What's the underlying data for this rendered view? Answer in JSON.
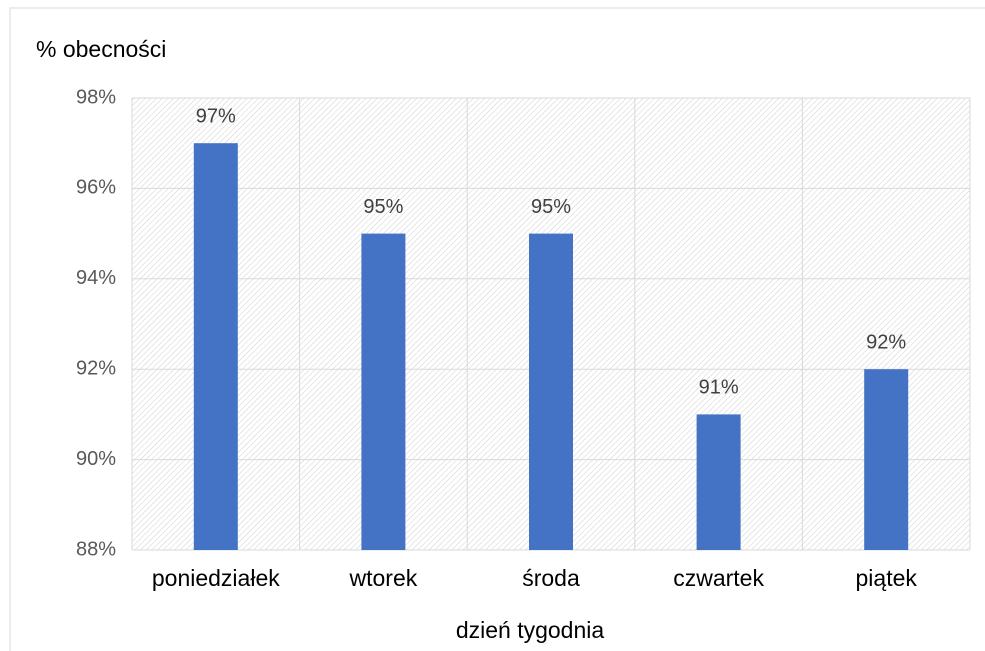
{
  "chart_data": {
    "type": "bar",
    "y_label": "% obecności",
    "x_label": "dzień tygodnia",
    "categories": [
      "poniedziałek",
      "wtorek",
      "środa",
      "czwartek",
      "piątek"
    ],
    "values": [
      97,
      95,
      95,
      91,
      92
    ],
    "value_labels": [
      "97%",
      "95%",
      "95%",
      "91%",
      "92%"
    ],
    "color": "#4472c4",
    "ylim": [
      88,
      98
    ],
    "yticks": [
      {
        "value": 88,
        "label": "88%"
      },
      {
        "value": 90,
        "label": "90%"
      },
      {
        "value": 92,
        "label": "92%"
      },
      {
        "value": 94,
        "label": "94%"
      },
      {
        "value": 96,
        "label": "96%"
      },
      {
        "value": 98,
        "label": "98%"
      }
    ],
    "grid": true
  }
}
